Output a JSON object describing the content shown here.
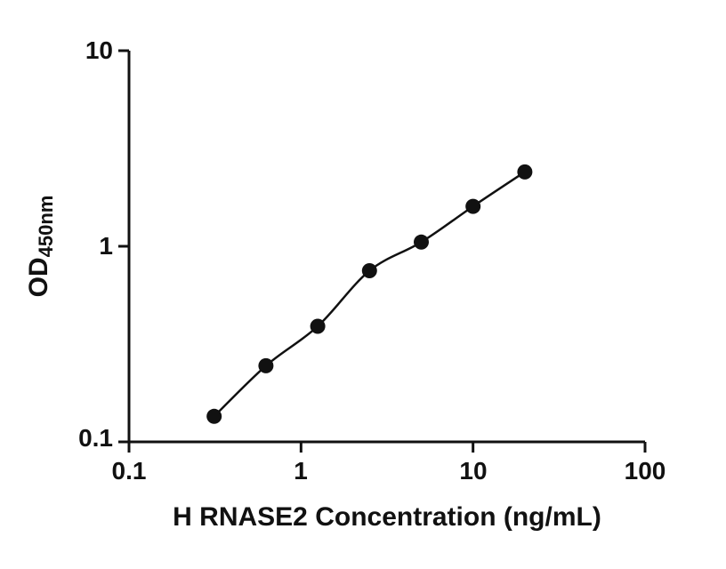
{
  "chart_data": {
    "type": "scatter",
    "title": "",
    "xlabel": "H RNASE2 Concentration (ng/mL)",
    "ylabel_main": "OD",
    "ylabel_sub": "450nm",
    "x_scale": "log",
    "y_scale": "log",
    "xlim": [
      0.1,
      100
    ],
    "ylim": [
      0.1,
      10
    ],
    "x": [
      0.3125,
      0.625,
      1.25,
      2.5,
      5,
      10,
      20
    ],
    "y": [
      0.135,
      0.245,
      0.39,
      0.75,
      1.05,
      1.6,
      2.4
    ],
    "x_tick_values": [
      0.1,
      1,
      10,
      100
    ],
    "x_tick_labels": [
      "0.1",
      "1",
      "10",
      "100"
    ],
    "y_tick_values": [
      0.1,
      1,
      10
    ],
    "y_tick_labels": [
      "0.1",
      "1",
      "10"
    ],
    "grid": false,
    "legend": "none",
    "fit_line": "smooth curve through points",
    "marker_color": "#111111",
    "line_color": "#111111",
    "axis_color": "#111111"
  }
}
